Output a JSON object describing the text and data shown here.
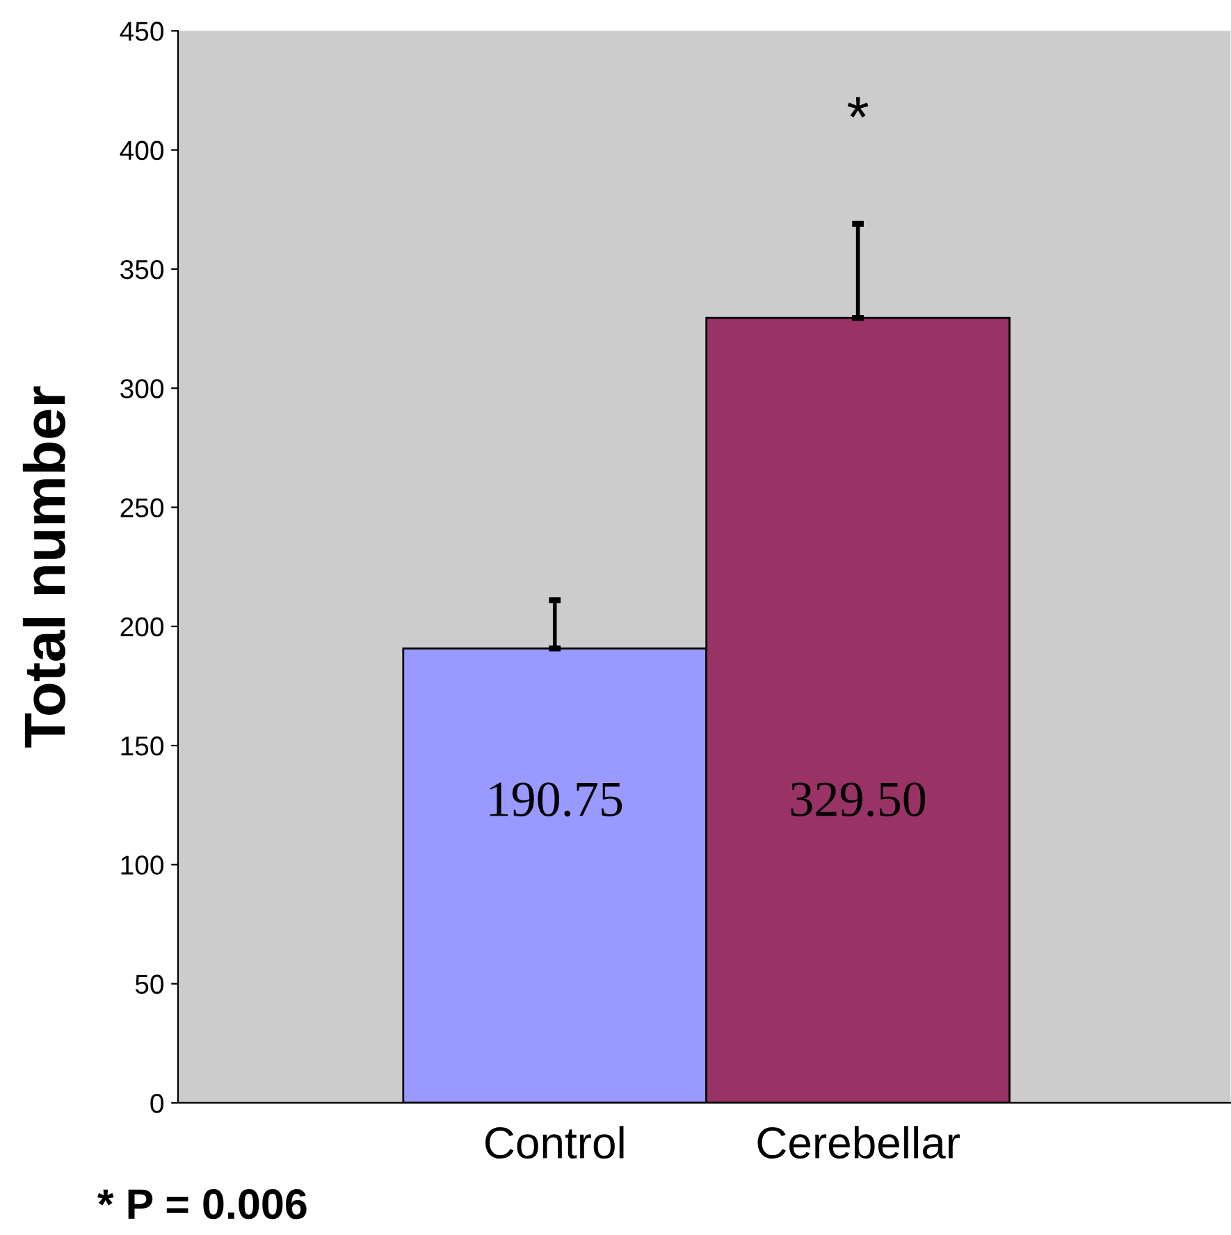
{
  "chart_data": {
    "type": "bar",
    "ylabel": "Total number",
    "categories": [
      "Control",
      "Cerebellar"
    ],
    "values": [
      190.75,
      329.5
    ],
    "colors": [
      "#9999ff",
      "#993366"
    ],
    "value_labels": [
      "190.75",
      "329.50"
    ],
    "errors": [
      [
        190.75,
        211
      ],
      [
        329.5,
        369
      ]
    ],
    "ylim": [
      0,
      450
    ],
    "yticks": [
      0,
      50,
      100,
      150,
      200,
      250,
      300,
      350,
      400,
      450
    ],
    "grid": false,
    "legend": false,
    "annotations": [
      "*",
      "* P = 0.006"
    ]
  }
}
